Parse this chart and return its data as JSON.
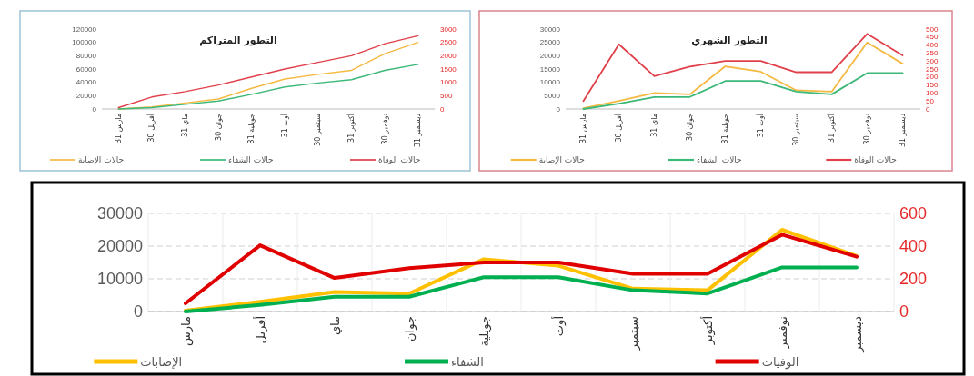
{
  "chart_data": [
    {
      "type": "line",
      "title": "التطور المتراكم",
      "categories": [
        "مارس 31",
        "أفريل 30",
        "ماي 31",
        "جوان 30",
        "جويلية 31",
        "أوت 31",
        "سبتمبر 30",
        "أكتوبر 31",
        "نوفمبر 30",
        "ديسمبر 31"
      ],
      "series": [
        {
          "name": "حالات الإصابة",
          "color": "#f5b942",
          "values": [
            0,
            3000,
            9000,
            15000,
            31000,
            45000,
            52000,
            58000,
            83000,
            100000
          ]
        },
        {
          "name": "حالات الشفاء",
          "color": "#3cb878",
          "values": [
            0,
            2000,
            7000,
            12000,
            22000,
            33000,
            39000,
            44000,
            58000,
            67000
          ]
        },
        {
          "name": "حالات الوفاة",
          "color": "#e0404a",
          "axis": "y2",
          "values": [
            50,
            450,
            650,
            900,
            1200,
            1500,
            1750,
            2000,
            2450,
            2750
          ]
        }
      ],
      "ylim": [
        0,
        120000
      ],
      "yticks": [
        0,
        20000,
        40000,
        60000,
        80000,
        100000,
        120000
      ],
      "y2lim": [
        0,
        3000
      ],
      "y2ticks": [
        0,
        500,
        1000,
        1500,
        2000,
        2500,
        3000
      ],
      "legend": "bottom"
    },
    {
      "type": "line",
      "title": "التطور الشهري",
      "categories": [
        "مارس 31",
        "أفريل 30",
        "ماي 31",
        "جوان 30",
        "جويلية 31",
        "أوت 31",
        "سبتمبر 30",
        "أكتوبر 31",
        "نوفمبر 30",
        "ديسمبر 31"
      ],
      "series": [
        {
          "name": "حالات الإصابة",
          "color": "#f5b942",
          "values": [
            300,
            3000,
            6000,
            5500,
            16000,
            14000,
            7000,
            6500,
            25000,
            17000
          ]
        },
        {
          "name": "حالات الشفاء",
          "color": "#3cb878",
          "values": [
            0,
            2000,
            4500,
            4500,
            10500,
            10500,
            6500,
            5500,
            13500,
            13500
          ]
        },
        {
          "name": "حالات الوفاة",
          "color": "#e0404a",
          "axis": "y2",
          "values": [
            50,
            405,
            205,
            265,
            300,
            300,
            230,
            230,
            470,
            335
          ]
        }
      ],
      "ylim": [
        0,
        30000
      ],
      "yticks": [
        0,
        5000,
        10000,
        15000,
        20000,
        25000,
        30000
      ],
      "y2lim": [
        0,
        500
      ],
      "y2ticks": [
        0,
        50,
        100,
        150,
        200,
        250,
        300,
        350,
        400,
        450,
        500
      ],
      "legend": "bottom"
    },
    {
      "type": "line",
      "categories": [
        "مارس",
        "أفريل",
        "ماي",
        "جوان",
        "جويلية",
        "أوت",
        "سبتمبر",
        "أكتوبر",
        "نوفمبر",
        "ديسمبر"
      ],
      "series": [
        {
          "name": "الإصابات",
          "color": "#ffc000",
          "values": [
            300,
            3000,
            6000,
            5500,
            16000,
            14000,
            7000,
            6500,
            25000,
            17000
          ]
        },
        {
          "name": "الشفاء",
          "color": "#00b050",
          "values": [
            0,
            2000,
            4500,
            4500,
            10500,
            10500,
            6500,
            5500,
            13500,
            13500
          ]
        },
        {
          "name": "الوفيات",
          "color": "#e00000",
          "axis": "y2",
          "values": [
            50,
            405,
            205,
            265,
            300,
            300,
            230,
            230,
            470,
            335
          ]
        }
      ],
      "ylim": [
        0,
        30000
      ],
      "yticks": [
        0,
        10000,
        20000,
        30000
      ],
      "y2lim": [
        0,
        600
      ],
      "y2ticks": [
        0,
        200,
        400,
        600
      ],
      "grid": true,
      "legend": "bottom"
    }
  ]
}
